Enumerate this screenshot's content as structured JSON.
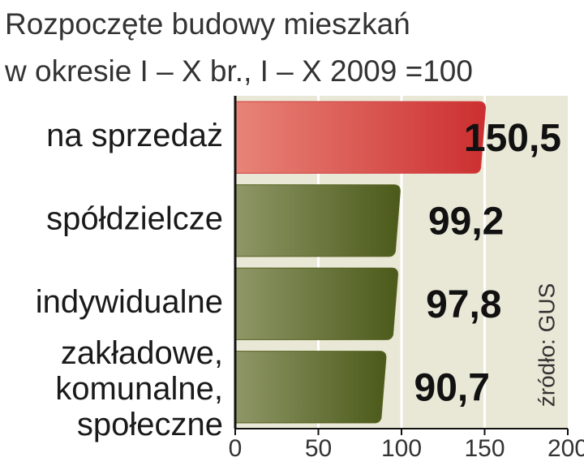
{
  "chart_data": {
    "type": "hbar",
    "title": "Rozpoczęte budowy mieszkań",
    "subtitle": "w okresie I – X br., I – X 2009 =100",
    "source": "źródło: GUS",
    "categories": [
      "na sprzedaż",
      "spółdzielcze",
      "indywidualne",
      "zakładowe,\nkomunalne,\nspołeczne"
    ],
    "values": [
      150.5,
      99.2,
      97.8,
      90.7
    ],
    "value_labels": [
      "150,5",
      "99,2",
      "97,8",
      "90,7"
    ],
    "colors": [
      "#d23c3c",
      "#56621f",
      "#56621f",
      "#56621f"
    ],
    "xlim": [
      0,
      200
    ],
    "xticks": [
      0,
      50,
      100,
      150,
      200
    ],
    "grid": true
  }
}
